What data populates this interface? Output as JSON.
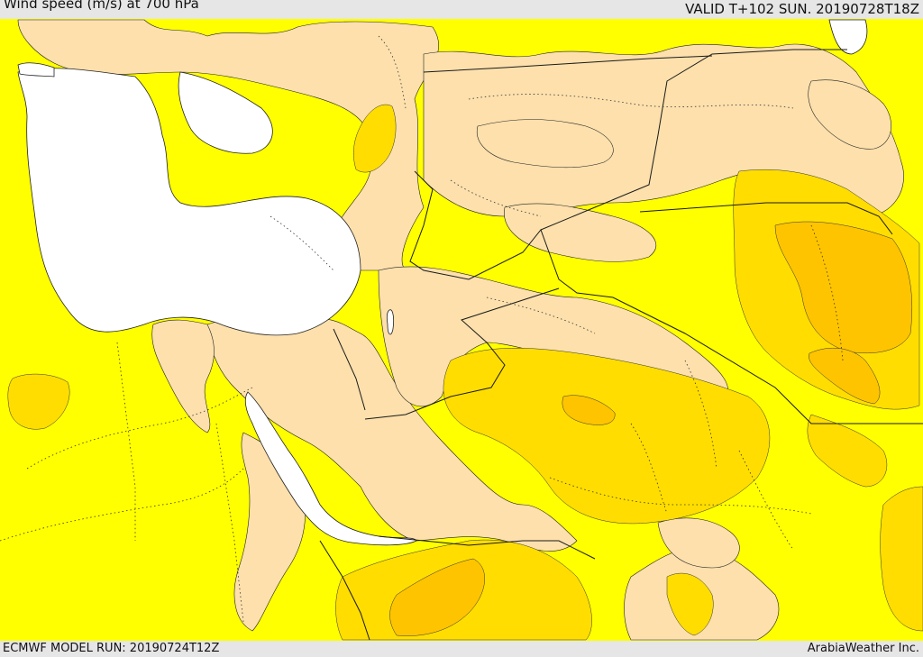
{
  "header": {
    "title": "Wind speed (m/s) at 700 hPa",
    "valid_time": "VALID T+102 SUN. 20190728T18Z"
  },
  "footer": {
    "model_run": "ECMWF MODEL RUN: 20190724T12Z",
    "credit": "ArabiaWeather Inc."
  },
  "map": {
    "colors": {
      "water": "#ffffff",
      "band_low": "#fde0ac",
      "band_mid": "#ffff00",
      "band_high": "#ffdd00",
      "band_higher": "#ffc400",
      "band_highest": "#ffb400",
      "boundary": "#1a1a1a"
    }
  }
}
